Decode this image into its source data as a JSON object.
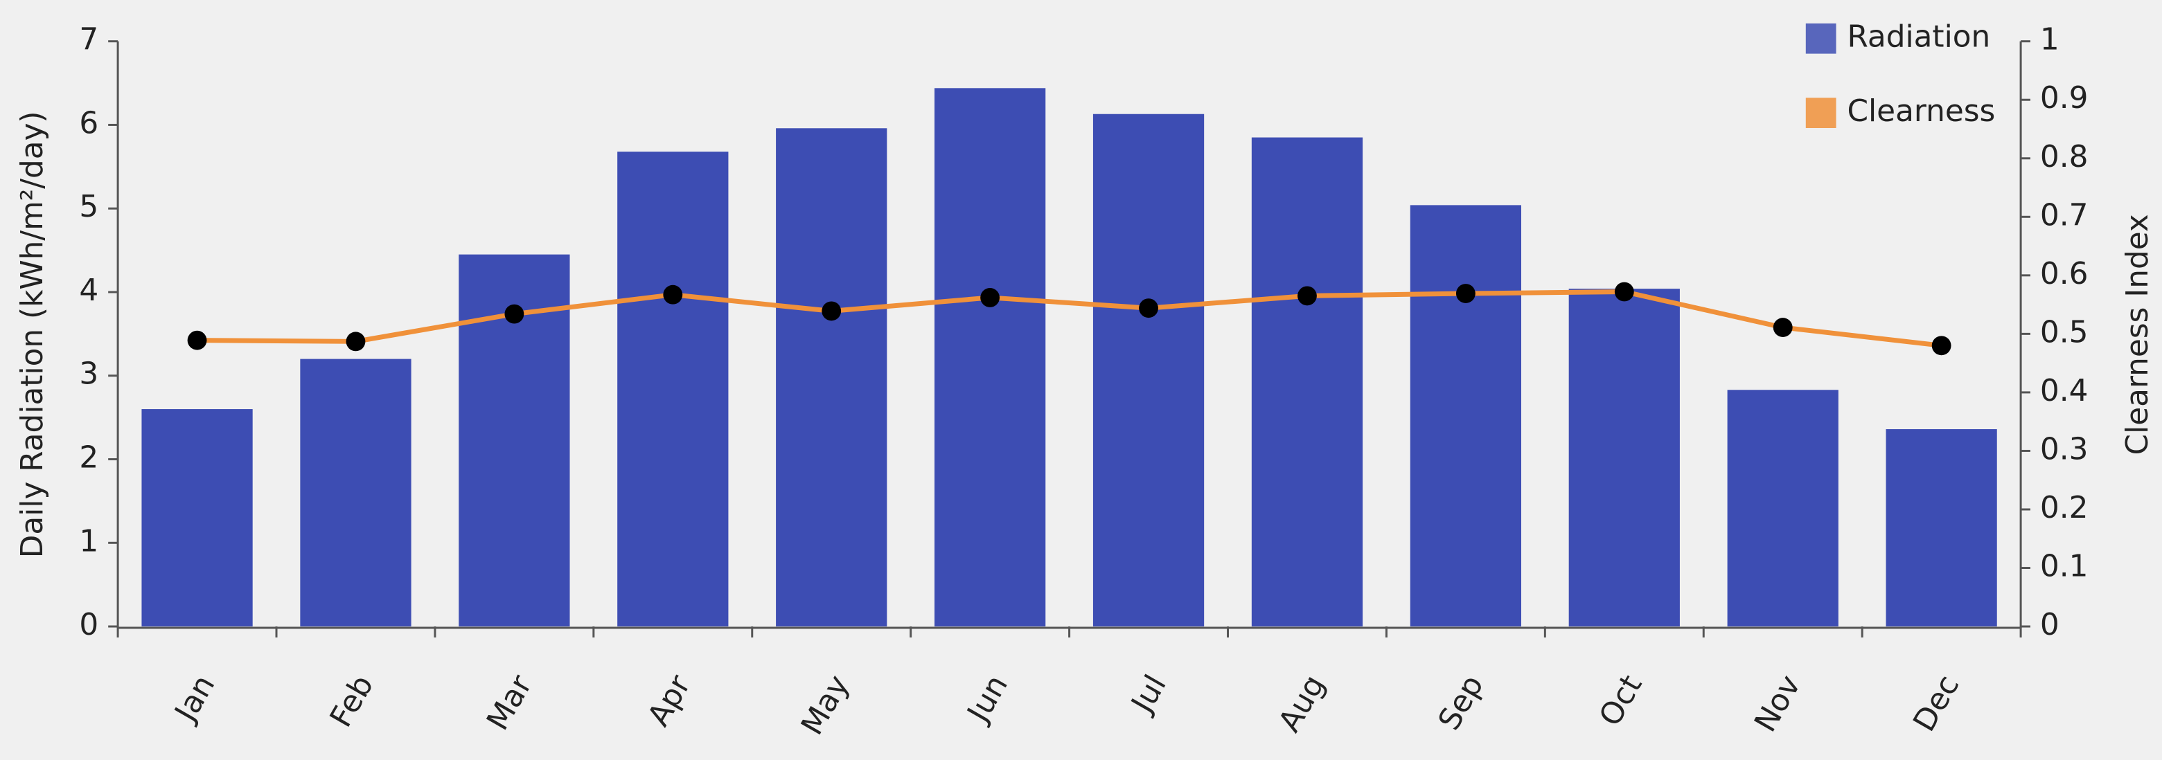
{
  "chart_data": {
    "type": "bar",
    "categories": [
      "Jan",
      "Feb",
      "Mar",
      "Apr",
      "May",
      "Jun",
      "Jul",
      "Aug",
      "Sep",
      "Oct",
      "Nov",
      "Dec"
    ],
    "series": [
      {
        "name": "Radiation",
        "color": "#3d4db3",
        "type": "bar",
        "values": [
          2.6,
          3.2,
          4.45,
          5.68,
          5.96,
          6.44,
          6.13,
          5.85,
          5.04,
          4.04,
          2.83,
          2.36
        ]
      },
      {
        "name": "Clearness",
        "color": "#f0913a",
        "type": "line",
        "axis": "y2",
        "values": [
          0.489,
          0.487,
          0.534,
          0.567,
          0.539,
          0.562,
          0.544,
          0.565,
          0.569,
          0.572,
          0.511,
          0.48
        ]
      }
    ],
    "ylabel": "Daily Radiation (kWh/m²/day)",
    "y2label": "Clearness Index",
    "ylim": [
      0,
      7
    ],
    "yticks": [
      0,
      1,
      2,
      3,
      4,
      5,
      6,
      7
    ],
    "y2lim": [
      0,
      1
    ],
    "y2ticks": [
      0,
      0.1,
      0.2,
      0.3,
      0.4,
      0.5,
      0.6,
      0.7,
      0.8,
      0.9,
      1
    ],
    "legend": "top-right",
    "grid": false
  }
}
